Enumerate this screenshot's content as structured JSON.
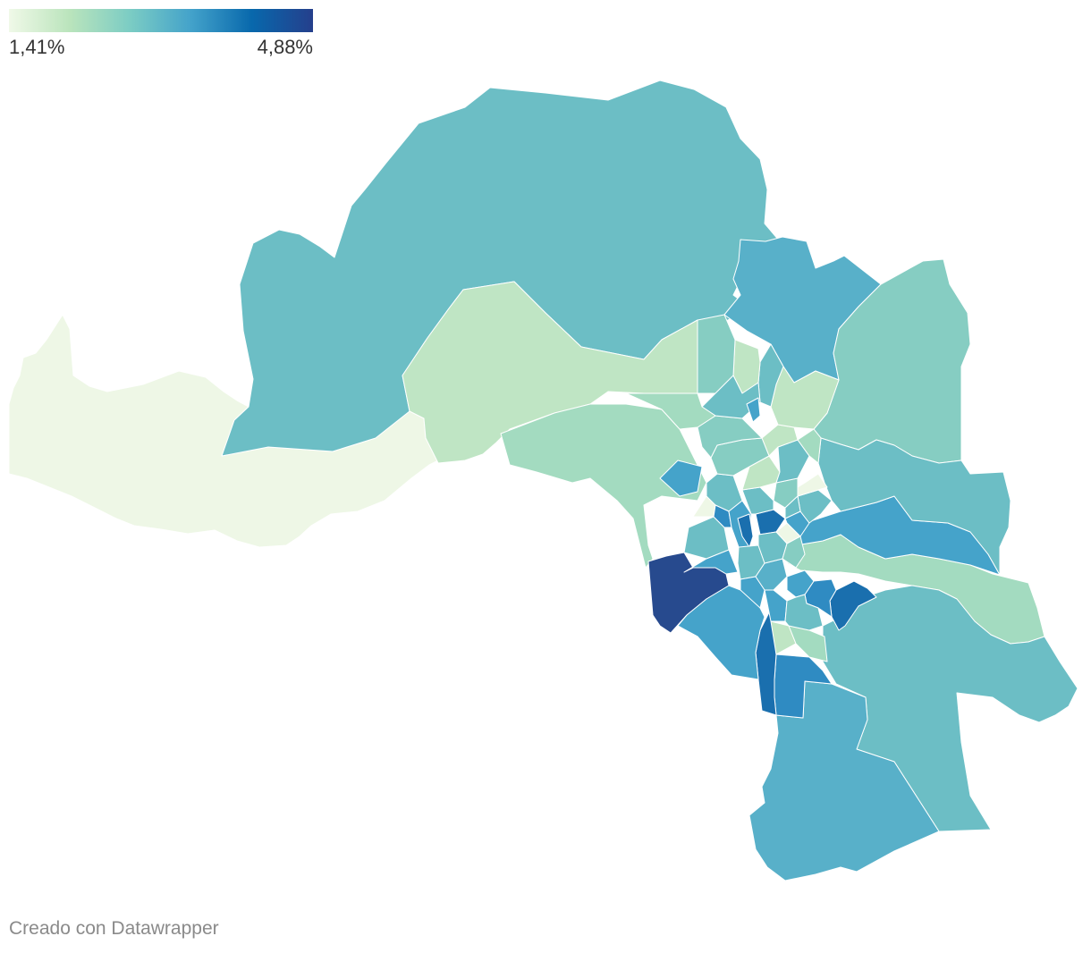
{
  "legend": {
    "min_label": "1,41%",
    "max_label": "4,88%",
    "min_value": 1.41,
    "max_value": 4.88,
    "colors": [
      "#f0f9e8",
      "#bae4bc",
      "#7bccc4",
      "#43a2ca",
      "#0868ac",
      "#253f8c"
    ]
  },
  "credit": "Creado con Datawrapper",
  "map": {
    "type": "choropleth",
    "region_colors": {
      "lightest": "#eef7e6",
      "light_green": "#bfe5c4",
      "mint": "#a3dbc0",
      "soft_teal": "#86cdc2",
      "teal": "#6cbec5",
      "cyan_blue": "#58b0c9",
      "blue": "#45a3ca",
      "mid_blue": "#2f8bc2",
      "dark_blue": "#1a6fae",
      "navy": "#274a8e"
    }
  }
}
